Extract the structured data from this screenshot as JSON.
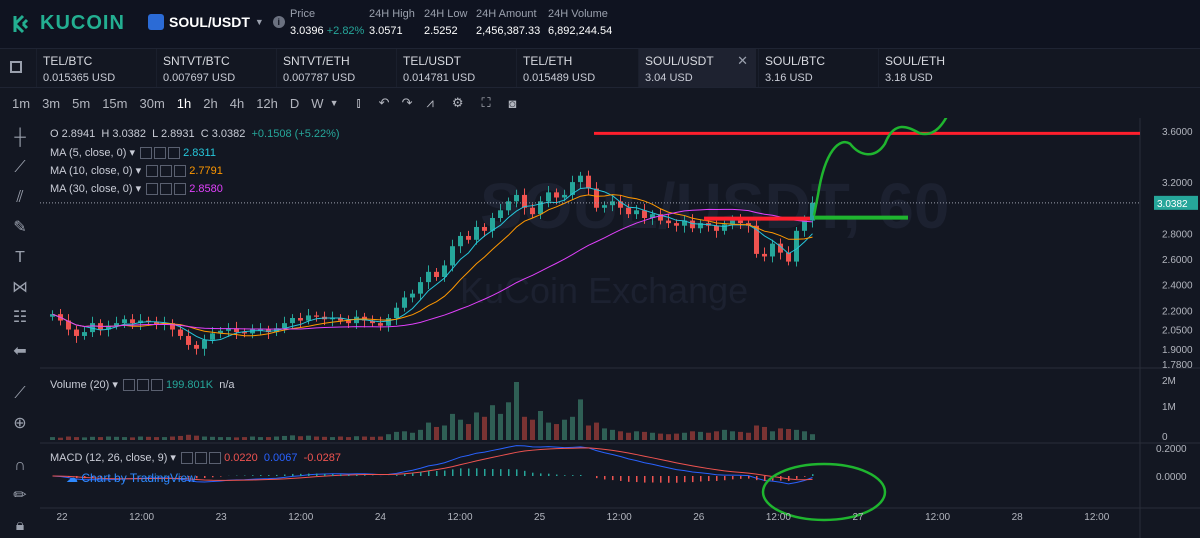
{
  "header": {
    "logo": "KUCOIN",
    "pair": "SOUL/USDT",
    "stats": [
      {
        "label": "Price",
        "value": "3.0396",
        "change": "+2.82%"
      },
      {
        "label": "24H High",
        "value": "3.0571"
      },
      {
        "label": "24H Low",
        "value": "2.5252"
      },
      {
        "label": "24H Amount",
        "value": "2,456,387.33"
      },
      {
        "label": "24H Volume",
        "value": "6,892,244.54"
      }
    ]
  },
  "tabs": [
    {
      "name": "TEL/BTC",
      "price": "0.015365 USD"
    },
    {
      "name": "SNTVT/BTC",
      "price": "0.007697 USD"
    },
    {
      "name": "SNTVT/ETH",
      "price": "0.007787 USD"
    },
    {
      "name": "TEL/USDT",
      "price": "0.014781 USD"
    },
    {
      "name": "TEL/ETH",
      "price": "0.015489 USD"
    },
    {
      "name": "SOUL/USDT",
      "price": "3.04 USD"
    },
    {
      "name": "SOUL/BTC",
      "price": "3.16 USD"
    },
    {
      "name": "SOUL/ETH",
      "price": "3.18 USD"
    }
  ],
  "timeframes": [
    "1m",
    "3m",
    "5m",
    "15m",
    "30m",
    "1h",
    "2h",
    "4h",
    "12h",
    "D",
    "W"
  ],
  "ohlc": {
    "o": "O 2.8941",
    "h": "H 3.0382",
    "l": "L 2.8931",
    "c": "C 3.0382",
    "chg": "+0.1508 (+5.22%)"
  },
  "indicators": {
    "ma5": {
      "label": "MA (5, close, 0)",
      "value": "2.8311",
      "color": "#26c6da"
    },
    "ma10": {
      "label": "MA (10, close, 0)",
      "value": "2.7791",
      "color": "#ff9800"
    },
    "ma30": {
      "label": "MA (30, close, 0)",
      "value": "2.8580",
      "color": "#e040fb"
    },
    "volume": {
      "label": "Volume (20)",
      "value": "199.801K",
      "extra": "n/a"
    },
    "macd": {
      "label": "MACD (12, 26, close, 9)",
      "v1": "0.0220",
      "v2": "0.0067",
      "v3": "-0.0287"
    }
  },
  "watermark": {
    "main": "SOUL/USDT, 60",
    "sub": "KuCoin Exchange"
  },
  "tradingview": "Chart by TradingView",
  "price_axis": [
    "3.6000",
    "3.2000",
    "3.0382",
    "2.8000",
    "2.6000",
    "2.4000",
    "2.2000",
    "2.0500",
    "1.9000",
    "1.7800"
  ],
  "volume_axis": [
    "2M",
    "1M",
    "0"
  ],
  "macd_axis": [
    "0.2000",
    "0.0000"
  ],
  "time_axis": [
    "22",
    "12:00",
    "23",
    "12:00",
    "24",
    "12:00",
    "25",
    "12:00",
    "26",
    "12:00",
    "27",
    "12:00",
    "28",
    "12:00"
  ],
  "chart_data": {
    "type": "candlestick",
    "closes": [
      2.17,
      2.12,
      2.05,
      2.0,
      2.03,
      2.1,
      2.05,
      2.08,
      2.1,
      2.13,
      2.1,
      2.12,
      2.11,
      2.09,
      2.1,
      2.05,
      2.0,
      1.93,
      1.9,
      1.97,
      2.02,
      2.04,
      2.06,
      2.03,
      2.02,
      2.05,
      2.05,
      2.03,
      2.06,
      2.1,
      2.14,
      2.12,
      2.16,
      2.15,
      2.13,
      2.14,
      2.12,
      2.1,
      2.15,
      2.12,
      2.1,
      2.08,
      2.14,
      2.22,
      2.3,
      2.33,
      2.42,
      2.5,
      2.46,
      2.55,
      2.7,
      2.78,
      2.75,
      2.85,
      2.82,
      2.92,
      2.98,
      3.05,
      3.1,
      3.0,
      2.95,
      3.05,
      3.12,
      3.08,
      3.1,
      3.2,
      3.25,
      3.15,
      3.0,
      3.02,
      3.05,
      3.0,
      2.95,
      2.98,
      2.92,
      2.95,
      2.9,
      2.88,
      2.86,
      2.9,
      2.84,
      2.88,
      2.86,
      2.82,
      2.87,
      2.9,
      2.88,
      2.86,
      2.64,
      2.62,
      2.72,
      2.65,
      2.58,
      2.82,
      2.9,
      3.0382
    ],
    "volume": [
      0.1,
      0.08,
      0.12,
      0.1,
      0.09,
      0.11,
      0.1,
      0.12,
      0.11,
      0.1,
      0.09,
      0.12,
      0.11,
      0.1,
      0.1,
      0.12,
      0.14,
      0.18,
      0.15,
      0.12,
      0.11,
      0.1,
      0.1,
      0.09,
      0.1,
      0.12,
      0.1,
      0.1,
      0.12,
      0.14,
      0.16,
      0.13,
      0.15,
      0.12,
      0.11,
      0.1,
      0.12,
      0.1,
      0.13,
      0.12,
      0.11,
      0.12,
      0.2,
      0.28,
      0.3,
      0.25,
      0.35,
      0.6,
      0.45,
      0.5,
      0.9,
      0.7,
      0.55,
      0.95,
      0.8,
      1.2,
      0.9,
      1.3,
      2.0,
      0.8,
      0.7,
      1.0,
      0.6,
      0.55,
      0.7,
      0.8,
      1.4,
      0.5,
      0.6,
      0.4,
      0.35,
      0.3,
      0.25,
      0.3,
      0.28,
      0.25,
      0.22,
      0.2,
      0.22,
      0.25,
      0.3,
      0.28,
      0.25,
      0.3,
      0.35,
      0.3,
      0.28,
      0.25,
      0.5,
      0.45,
      0.3,
      0.4,
      0.38,
      0.35,
      0.3,
      0.2
    ],
    "support_level": 2.9,
    "resistance_level": 3.58
  }
}
